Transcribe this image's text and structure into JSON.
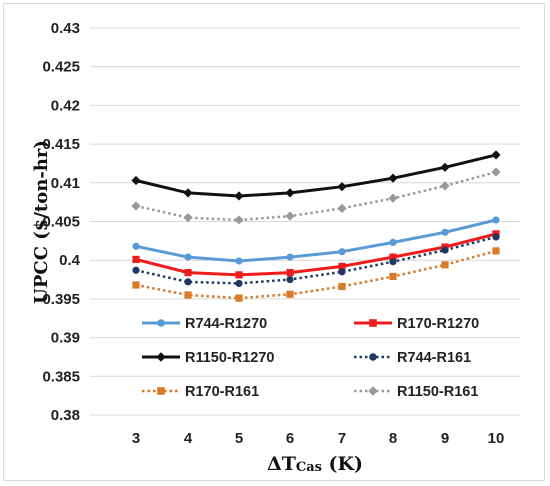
{
  "chart_data": {
    "type": "line",
    "title": "",
    "xlabel_main": "ΔT",
    "xlabel_sub": "Cas",
    "xlabel_unit": " (K)",
    "ylabel": "UPCC ($/ton-hr)",
    "x": [
      3,
      4,
      5,
      6,
      7,
      8,
      9,
      10
    ],
    "xlim": [
      3,
      10
    ],
    "ylim": [
      0.38,
      0.43
    ],
    "yticks": [
      "0.38",
      "0.385",
      "0.39",
      "0.395",
      "0.4",
      "0.405",
      "0.41",
      "0.415",
      "0.42",
      "0.425",
      "0.43"
    ],
    "grid": "horizontal",
    "legend_position": "bottom-inside",
    "series": [
      {
        "name": "R744-R1270",
        "color": "#5b9bd5",
        "dash": "solid",
        "marker": "circle",
        "values": [
          0.4018,
          0.4004,
          0.3999,
          0.4004,
          0.4011,
          0.4023,
          0.4036,
          0.4052
        ]
      },
      {
        "name": "R170-R1270",
        "color": "#ee1c1c",
        "dash": "solid",
        "marker": "square",
        "values": [
          0.4001,
          0.3984,
          0.3981,
          0.3984,
          0.3992,
          0.4004,
          0.4017,
          0.4034
        ]
      },
      {
        "name": "R1150-R1270",
        "color": "#111111",
        "dash": "solid",
        "marker": "diamond",
        "values": [
          0.4103,
          0.4087,
          0.4083,
          0.4087,
          0.4095,
          0.4106,
          0.412,
          0.4136
        ]
      },
      {
        "name": "R744-R161",
        "color": "#1f3864",
        "dash": "dotted",
        "marker": "circle",
        "values": [
          0.3987,
          0.3972,
          0.397,
          0.3975,
          0.3985,
          0.3998,
          0.4013,
          0.403
        ]
      },
      {
        "name": "R170-R161",
        "color": "#d97a29",
        "dash": "dotted",
        "marker": "square",
        "values": [
          0.3968,
          0.3955,
          0.3951,
          0.3956,
          0.3966,
          0.3979,
          0.3994,
          0.4012
        ]
      },
      {
        "name": "R1150-R161",
        "color": "#999999",
        "dash": "dotted",
        "marker": "diamond",
        "values": [
          0.407,
          0.4055,
          0.4052,
          0.4057,
          0.4067,
          0.408,
          0.4096,
          0.4114
        ]
      }
    ]
  }
}
